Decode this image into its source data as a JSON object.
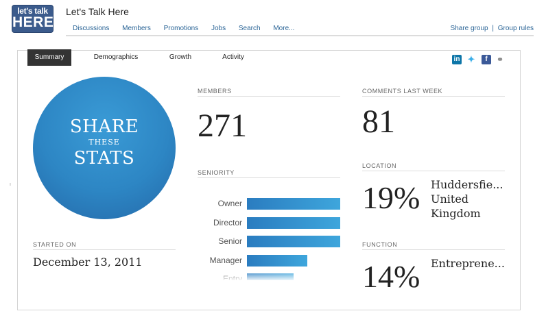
{
  "logo": {
    "line1": "let's talk",
    "line2": "HERE"
  },
  "group_title": "Let's Talk Here",
  "nav": [
    "Discussions",
    "Members",
    "Promotions",
    "Jobs",
    "Search",
    "More..."
  ],
  "right_nav": {
    "share_group": "Share group",
    "separator": "|",
    "group_rules": "Group rules"
  },
  "tabs": [
    "Summary",
    "Demographics",
    "Growth",
    "Activity"
  ],
  "social_icons": [
    "linkedin-icon",
    "twitter-icon",
    "facebook-icon",
    "link-icon"
  ],
  "share_circle": {
    "line1": "SHARE",
    "line2": "THESE",
    "line3": "STATS"
  },
  "started_on": {
    "caption": "STARTED ON",
    "value": "December 13, 2011"
  },
  "members": {
    "caption": "MEMBERS",
    "value": "271"
  },
  "comments": {
    "caption": "COMMENTS LAST WEEK",
    "value": "81"
  },
  "seniority": {
    "caption": "SENIORITY",
    "items": [
      {
        "label": "Owner",
        "fraction": 1.0
      },
      {
        "label": "Director",
        "fraction": 1.0
      },
      {
        "label": "Senior",
        "fraction": 1.0
      },
      {
        "label": "Manager",
        "fraction": 0.65
      },
      {
        "label": "Entry",
        "fraction": 0.5
      }
    ]
  },
  "location": {
    "caption": "LOCATION",
    "percent": "19%",
    "line1": "Huddersfie...",
    "line2": "United",
    "line3": "Kingdom"
  },
  "function": {
    "caption": "FUNCTION",
    "percent": "14%",
    "line1": "Entreprene..."
  },
  "colors": {
    "accent": "#2a6496",
    "circle": "#2d86c4",
    "bar": "#3a9ad6",
    "tab_active": "#333333"
  }
}
